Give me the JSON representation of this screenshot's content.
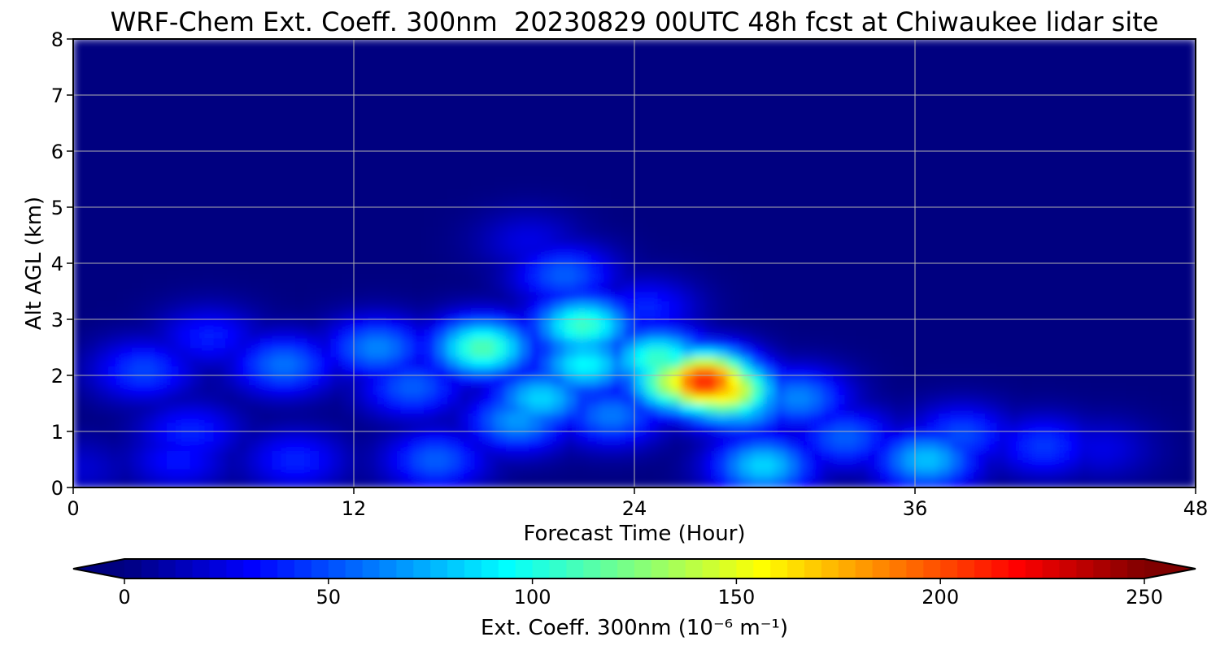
{
  "chart_data": {
    "type": "heatmap",
    "title": "WRF-Chem Ext. Coeff. 300nm  20230829 00UTC 48h fcst at Chiwaukee lidar site",
    "xlabel": "Forecast Time (Hour)",
    "ylabel": "Alt AGL (km)",
    "xlim": [
      0,
      48
    ],
    "ylim": [
      0,
      8
    ],
    "xticks": [
      0,
      12,
      24,
      36,
      48
    ],
    "yticks": [
      0,
      1,
      2,
      3,
      4,
      5,
      6,
      7,
      8
    ],
    "grid": true,
    "colormap": "jet",
    "colorbar": {
      "label": "Ext. Coeff. 300nm  (10⁻⁶ m⁻¹)",
      "range": [
        0,
        250
      ],
      "ticks": [
        0,
        50,
        100,
        150,
        200,
        250
      ],
      "extend": "both",
      "orientation": "horizontal"
    },
    "features": [
      {
        "x": 0.3,
        "y": 0.35,
        "value": 20
      },
      {
        "x": 6.5,
        "y": 1.9,
        "value": 10
      },
      {
        "x": 4.5,
        "y": 0.5,
        "value": 35
      },
      {
        "x": 5.0,
        "y": 1.0,
        "value": 40
      },
      {
        "x": 3.0,
        "y": 2.1,
        "value": 48
      },
      {
        "x": 5.8,
        "y": 2.7,
        "value": 38
      },
      {
        "x": 9.0,
        "y": 2.2,
        "value": 60
      },
      {
        "x": 9.5,
        "y": 0.5,
        "value": 40
      },
      {
        "x": 13.0,
        "y": 2.5,
        "value": 65
      },
      {
        "x": 14.5,
        "y": 1.8,
        "value": 55
      },
      {
        "x": 15.5,
        "y": 0.5,
        "value": 55
      },
      {
        "x": 17.5,
        "y": 2.5,
        "value": 115
      },
      {
        "x": 19.0,
        "y": 1.2,
        "value": 70
      },
      {
        "x": 19.5,
        "y": 4.4,
        "value": 25
      },
      {
        "x": 20.0,
        "y": 1.6,
        "value": 85
      },
      {
        "x": 21.0,
        "y": 3.8,
        "value": 55
      },
      {
        "x": 21.8,
        "y": 2.9,
        "value": 110
      },
      {
        "x": 21.9,
        "y": 2.2,
        "value": 95
      },
      {
        "x": 23.0,
        "y": 1.3,
        "value": 62
      },
      {
        "x": 24.5,
        "y": 3.2,
        "value": 40
      },
      {
        "x": 25.0,
        "y": 2.3,
        "value": 110
      },
      {
        "x": 26.0,
        "y": 1.9,
        "value": 155
      },
      {
        "x": 27.0,
        "y": 1.9,
        "value": 215
      },
      {
        "x": 27.8,
        "y": 1.75,
        "value": 170
      },
      {
        "x": 28.5,
        "y": 1.5,
        "value": 90
      },
      {
        "x": 29.5,
        "y": 0.4,
        "value": 85
      },
      {
        "x": 31.0,
        "y": 1.6,
        "value": 65
      },
      {
        "x": 33.0,
        "y": 0.9,
        "value": 55
      },
      {
        "x": 36.5,
        "y": 0.5,
        "value": 80
      },
      {
        "x": 38.0,
        "y": 0.95,
        "value": 50
      },
      {
        "x": 41.5,
        "y": 0.75,
        "value": 45
      },
      {
        "x": 44.0,
        "y": 0.7,
        "value": 25
      }
    ]
  }
}
